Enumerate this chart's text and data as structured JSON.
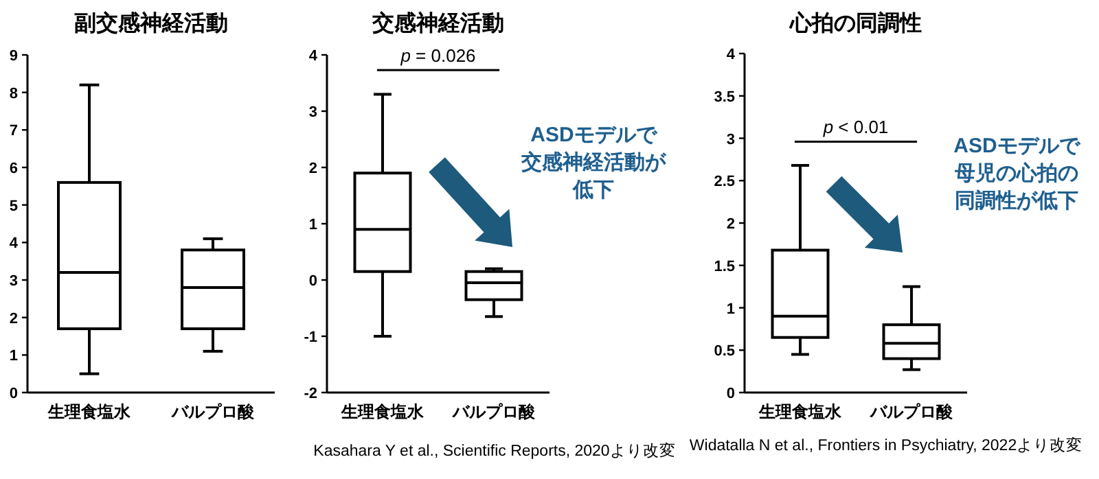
{
  "chart_data": [
    {
      "type": "box",
      "title": "副交感神経活動",
      "categories": [
        "生理食塩水",
        "バルプロ酸"
      ],
      "ylim": [
        0,
        9
      ],
      "yticks": [
        0,
        1,
        2,
        3,
        4,
        5,
        6,
        7,
        8,
        9
      ],
      "color": "#000000",
      "boxes": [
        {
          "low": 0.5,
          "q1": 1.7,
          "median": 3.2,
          "q3": 5.6,
          "high": 8.2
        },
        {
          "low": 1.1,
          "q1": 1.7,
          "median": 2.8,
          "q3": 3.8,
          "high": 4.1
        }
      ]
    },
    {
      "type": "box",
      "title": "交感神経活動",
      "categories": [
        "生理食塩水",
        "バルプロ酸"
      ],
      "ylim": [
        -2,
        4
      ],
      "yticks": [
        -2,
        -1,
        0,
        1,
        2,
        3,
        4
      ],
      "color": "#000000",
      "boxes": [
        {
          "low": -1.0,
          "q1": 0.15,
          "median": 0.9,
          "q3": 1.9,
          "high": 3.3
        },
        {
          "low": -0.65,
          "q1": -0.35,
          "median": -0.05,
          "q3": 0.15,
          "high": 0.2
        }
      ],
      "annotations": [
        "p = 0.026",
        "ASDモデルで",
        "交感神経活動が",
        "低下",
        "Kasahara Y et al., Scientific Reports, 2020より改変"
      ]
    },
    {
      "type": "box",
      "title": "心拍の同調性",
      "categories": [
        "生理食塩水",
        "バルプロ酸"
      ],
      "ylim": [
        0,
        4
      ],
      "yticks": [
        0,
        0.5,
        1,
        1.5,
        2,
        2.5,
        3,
        3.5,
        4
      ],
      "color": "#000000",
      "boxes": [
        {
          "low": 0.45,
          "q1": 0.65,
          "median": 0.9,
          "q3": 1.68,
          "high": 2.68
        },
        {
          "low": 0.27,
          "q1": 0.4,
          "median": 0.58,
          "q3": 0.8,
          "high": 1.25
        }
      ],
      "annotations": [
        "p < 0.01",
        "ASDモデルで",
        "母児の心拍の",
        "同調性が低下",
        "Widatalla N et al., Frontiers in Psychiatry, 2022より改変"
      ]
    }
  ]
}
